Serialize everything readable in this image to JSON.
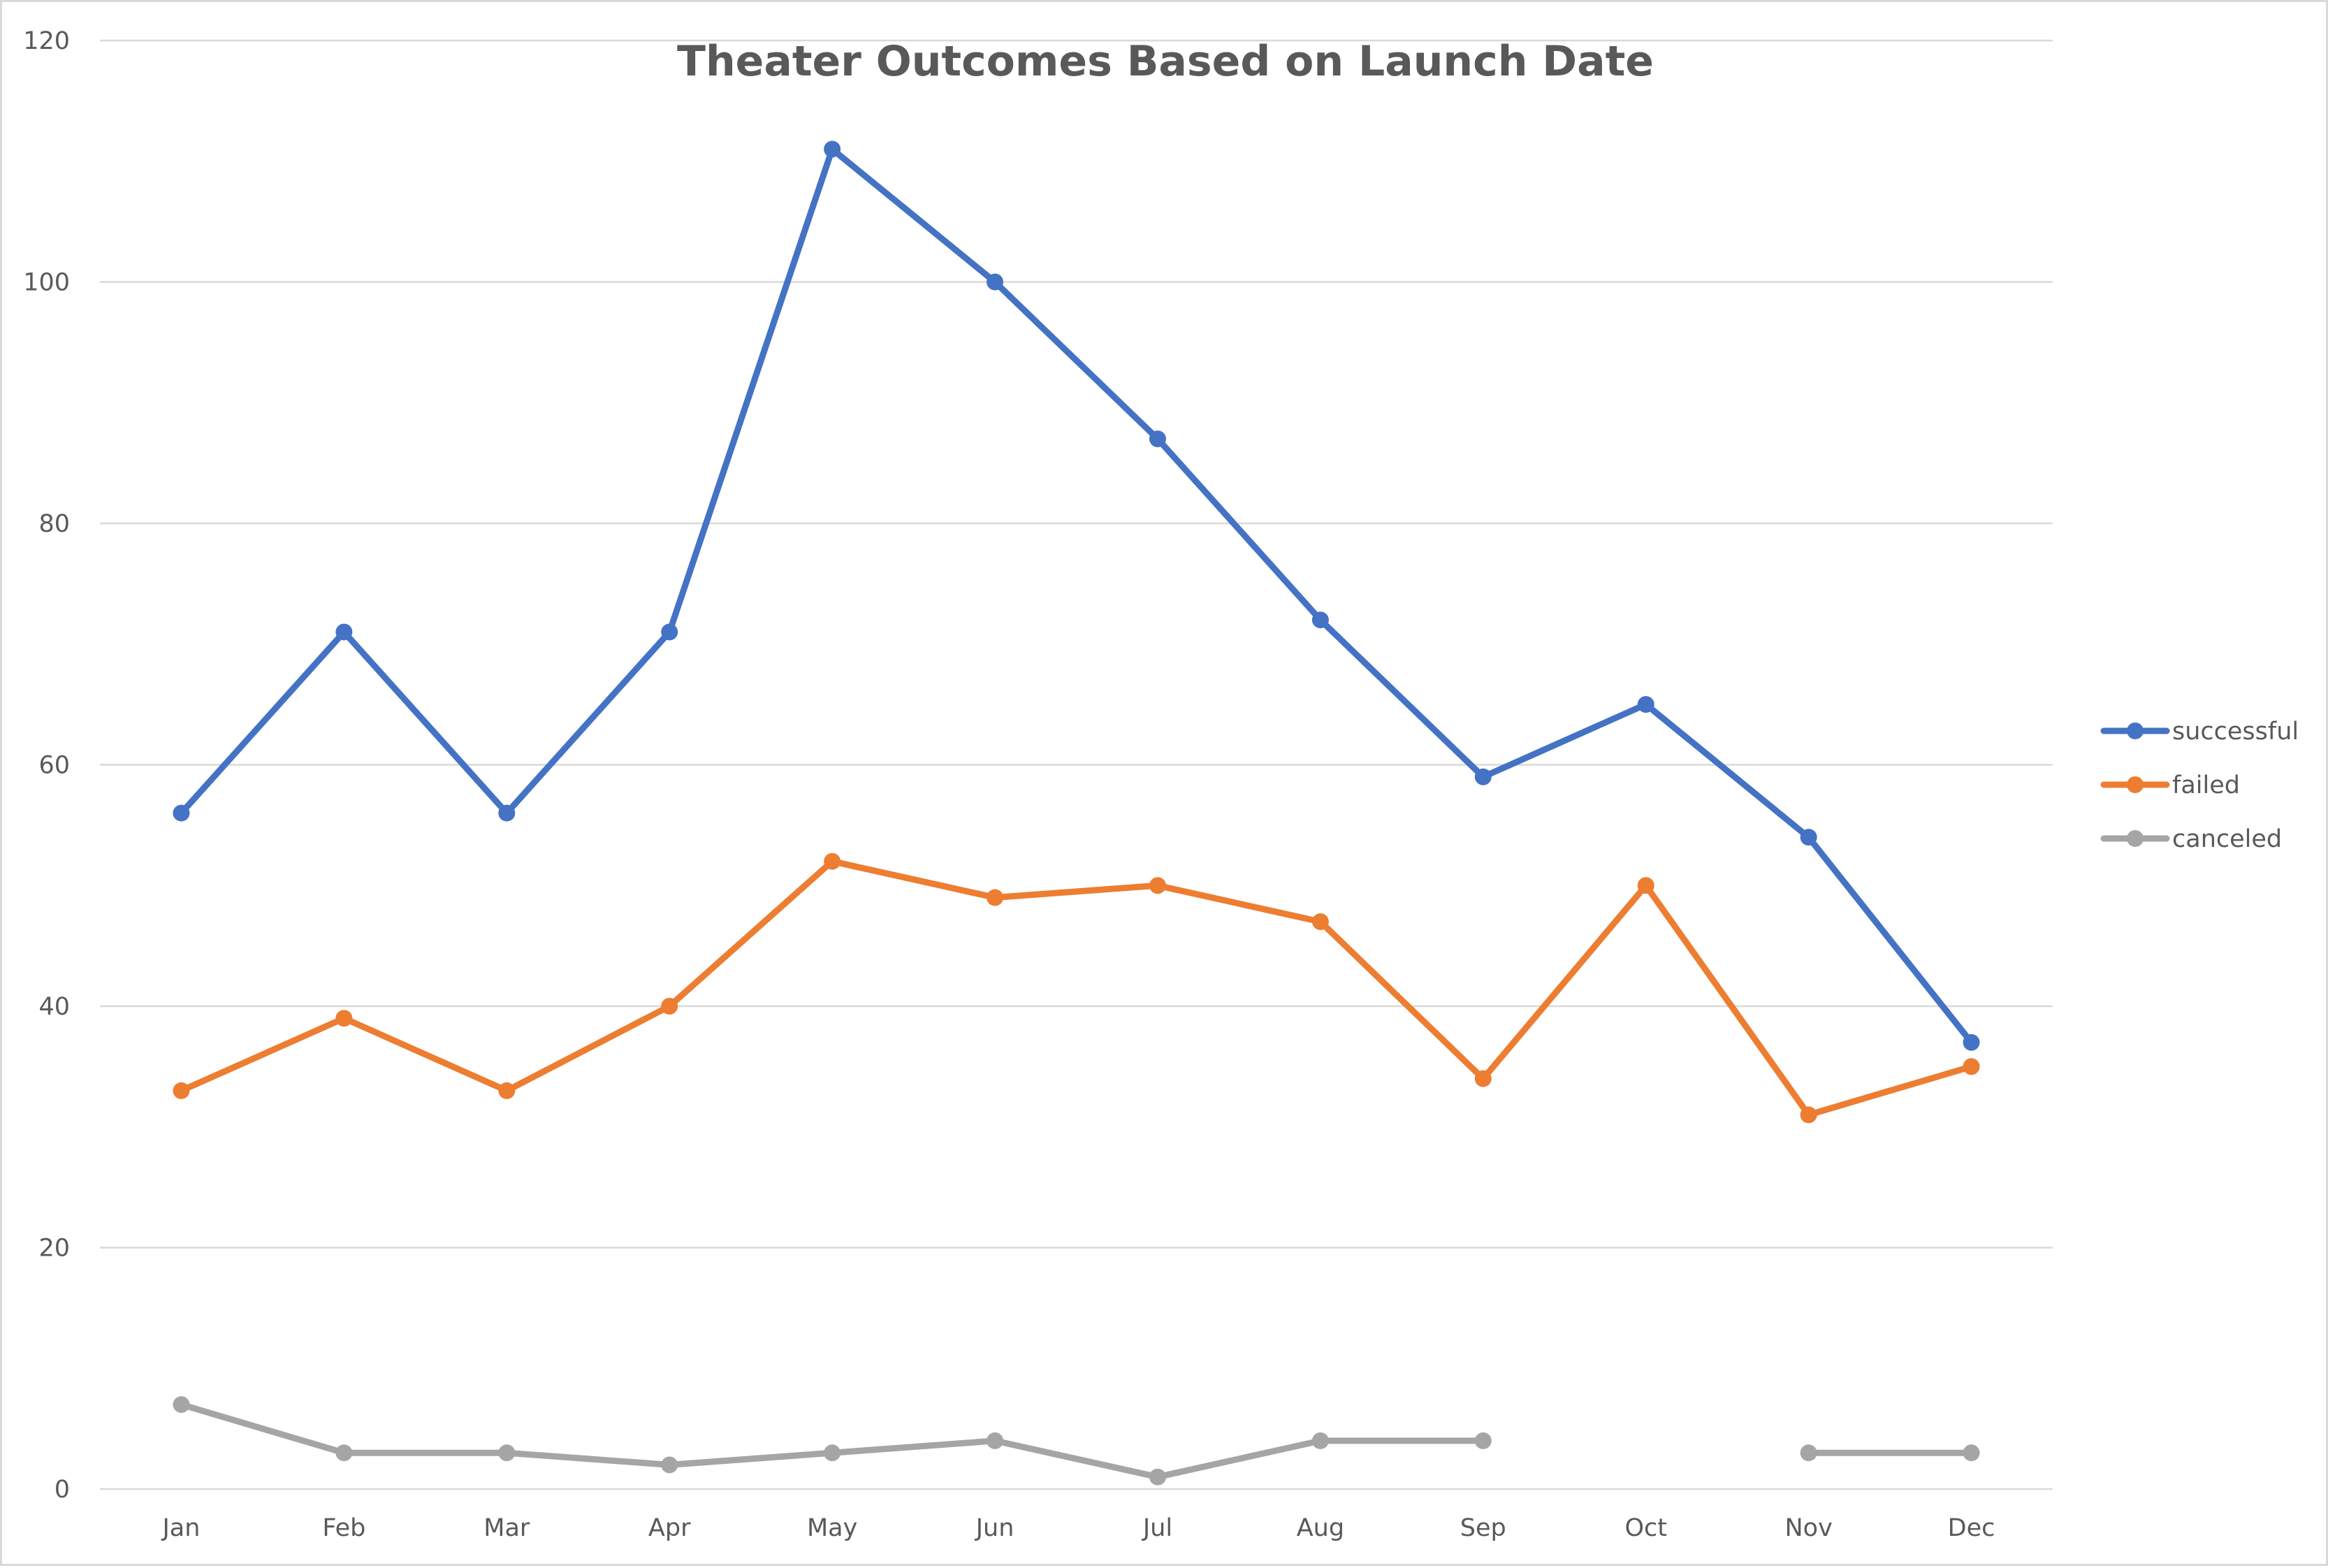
{
  "chart_data": {
    "type": "line",
    "title": "Theater Outcomes Based on Launch Date",
    "xlabel": "",
    "ylabel": "",
    "categories": [
      "Jan",
      "Feb",
      "Mar",
      "Apr",
      "May",
      "Jun",
      "Jul",
      "Aug",
      "Sep",
      "Oct",
      "Nov",
      "Dec"
    ],
    "ylim": [
      0,
      120
    ],
    "yticks": [
      "0",
      "20",
      "40",
      "60",
      "80",
      "100",
      "120"
    ],
    "grid": true,
    "legend_position": "right",
    "series": [
      {
        "name": "successful",
        "color": "#4472c4",
        "values": [
          56,
          71,
          56,
          71,
          111,
          100,
          87,
          72,
          59,
          65,
          54,
          37
        ]
      },
      {
        "name": "failed",
        "color": "#ed7d31",
        "values": [
          33,
          39,
          33,
          40,
          52,
          49,
          50,
          47,
          34,
          50,
          31,
          35
        ]
      },
      {
        "name": "canceled",
        "color": "#a5a5a5",
        "values": [
          7,
          3,
          3,
          2,
          3,
          4,
          1,
          4,
          4,
          null,
          3,
          3
        ]
      }
    ]
  }
}
